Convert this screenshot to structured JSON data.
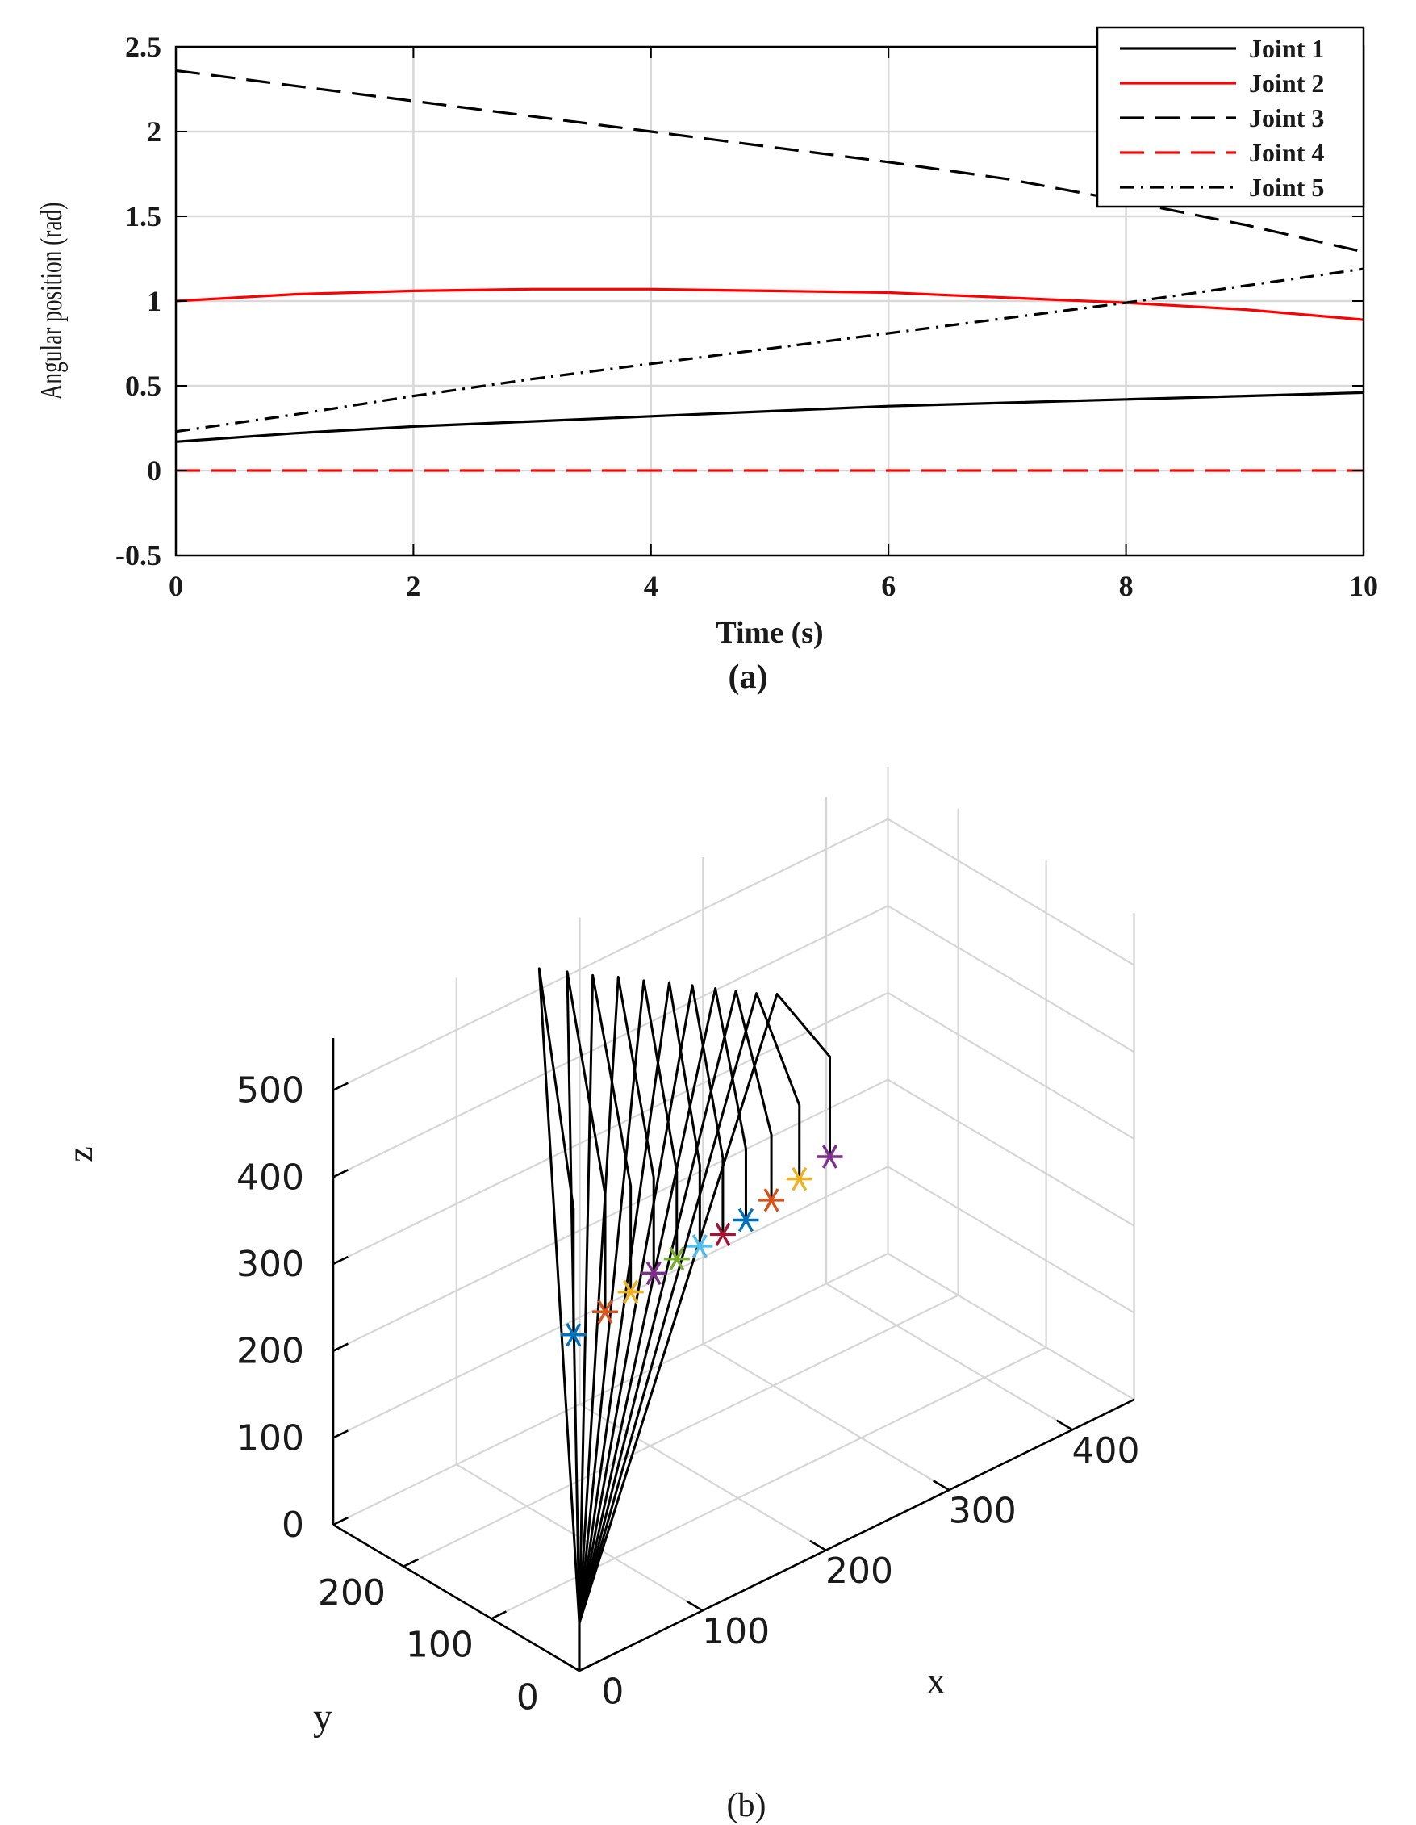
{
  "chart_data": [
    {
      "type": "line",
      "panel_label": "(a)",
      "xlabel": "Time (s)",
      "ylabel": "Angular position (rad)",
      "xlim": [
        0,
        10
      ],
      "ylim": [
        -0.5,
        2.5
      ],
      "xticks": [
        "0",
        "2",
        "4",
        "6",
        "8",
        "10"
      ],
      "yticks": [
        "-0.5",
        "0",
        "0.5",
        "1",
        "1.5",
        "2",
        "2.5"
      ],
      "grid": true,
      "legend_position": "top-right",
      "x": [
        0,
        1,
        2,
        3,
        4,
        5,
        6,
        7,
        8,
        9,
        10
      ],
      "series": [
        {
          "name": "Joint 1",
          "color": "#000000",
          "style": "solid",
          "values": [
            0.17,
            0.22,
            0.26,
            0.29,
            0.32,
            0.35,
            0.38,
            0.4,
            0.42,
            0.44,
            0.46
          ]
        },
        {
          "name": "Joint 2",
          "color": "#ff0000",
          "style": "solid",
          "values": [
            1.0,
            1.04,
            1.06,
            1.07,
            1.07,
            1.06,
            1.05,
            1.02,
            0.99,
            0.95,
            0.89
          ]
        },
        {
          "name": "Joint 3",
          "color": "#000000",
          "style": "dashed",
          "values": [
            2.36,
            2.27,
            2.18,
            2.09,
            2.0,
            1.91,
            1.82,
            1.72,
            1.59,
            1.45,
            1.29
          ]
        },
        {
          "name": "Joint 4",
          "color": "#ff0000",
          "style": "dashed",
          "values": [
            0,
            0,
            0,
            0,
            0,
            0,
            0,
            0,
            0,
            0,
            0
          ]
        },
        {
          "name": "Joint 5",
          "color": "#000000",
          "style": "dashdot",
          "values": [
            0.23,
            0.33,
            0.44,
            0.54,
            0.63,
            0.72,
            0.81,
            0.9,
            0.99,
            1.09,
            1.19
          ]
        }
      ]
    },
    {
      "type": "line3d",
      "panel_label": "(b)",
      "xlabel": "x",
      "ylabel": "y",
      "zlabel": "z",
      "xlim": [
        0,
        450
      ],
      "ylim": [
        0,
        280
      ],
      "zlim": [
        0,
        560
      ],
      "xticks": [
        "0",
        "100",
        "200",
        "300",
        "400"
      ],
      "yticks": [
        "0",
        "100",
        "200"
      ],
      "zticks": [
        "0",
        "100",
        "200",
        "300",
        "400",
        "500"
      ],
      "grid": true,
      "base_point": [
        0,
        0,
        55
      ],
      "wrist_end": [
        [
          160,
          270,
          535
        ],
        [
          172,
          255,
          532
        ],
        [
          182,
          240,
          530
        ],
        [
          192,
          225,
          530
        ],
        [
          202,
          210,
          528
        ],
        [
          212,
          195,
          528
        ],
        [
          220,
          180,
          528
        ],
        [
          228,
          165,
          528
        ],
        [
          234,
          150,
          530
        ],
        [
          240,
          135,
          532
        ],
        [
          246,
          120,
          536
        ]
      ],
      "elbow_end": [
        [
          145,
          210,
          305
        ],
        [
          160,
          195,
          320
        ],
        [
          170,
          180,
          332
        ],
        [
          178,
          165,
          345
        ],
        [
          186,
          150,
          355
        ],
        [
          194,
          135,
          366
        ],
        [
          202,
          120,
          378
        ],
        [
          210,
          105,
          392
        ],
        [
          220,
          90,
          410
        ],
        [
          232,
          75,
          445
        ],
        [
          246,
          60,
          500
        ]
      ],
      "end_effector": [
        [
          145,
          210,
          160
        ],
        [
          160,
          195,
          185
        ],
        [
          170,
          180,
          210
        ],
        [
          178,
          165,
          235
        ],
        [
          186,
          150,
          255
        ],
        [
          194,
          135,
          273
        ],
        [
          202,
          120,
          290
        ],
        [
          210,
          105,
          310
        ],
        [
          220,
          90,
          335
        ],
        [
          232,
          75,
          360
        ],
        [
          246,
          60,
          385
        ]
      ],
      "marker_colors": [
        "#0072bd",
        "#d95319",
        "#edb120",
        "#7e2f8e",
        "#77ac30",
        "#4dbeee",
        "#a2142f",
        "#0072bd",
        "#d95319",
        "#edb120",
        "#7e2f8e"
      ]
    }
  ]
}
